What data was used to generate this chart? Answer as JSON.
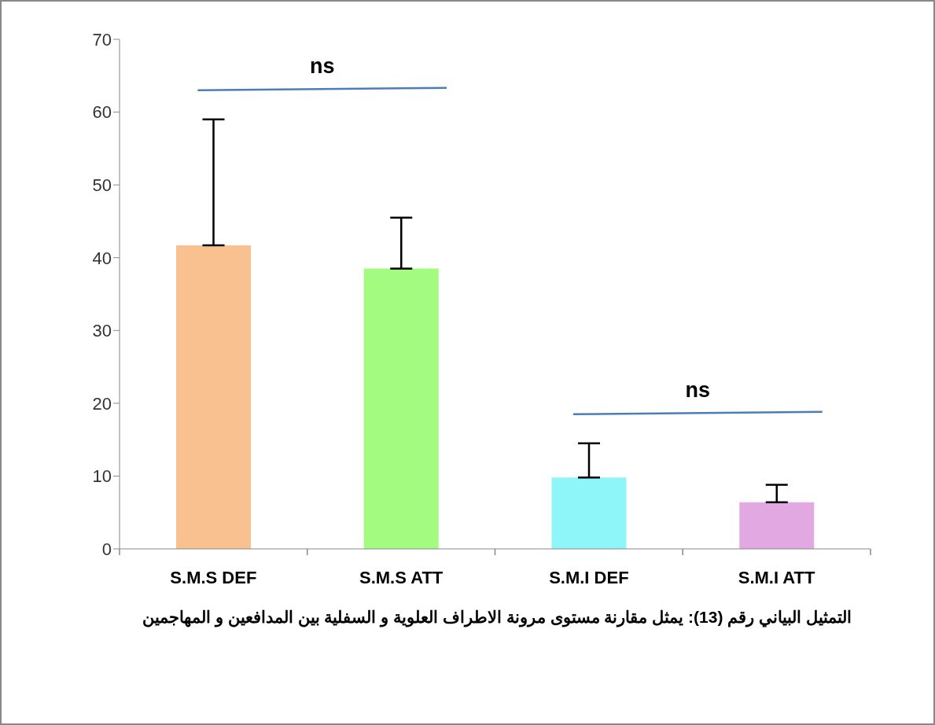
{
  "chart_data": {
    "type": "bar",
    "title": "التمثيل البياني رقم (13): يمثل مقارنة مستوى مرونة الاطراف العلوية و السفلية بين المدافعين و المهاجمين",
    "categories": [
      "S.M.S DEF",
      "S.M.S ATT",
      "S.M.I DEF",
      "S.M.I ATT"
    ],
    "values": [
      41.7,
      38.5,
      9.8,
      6.4
    ],
    "colors": [
      "#f9c18f",
      "#a3fc7f",
      "#8ef5f8",
      "#e2a8e2"
    ],
    "errors": [
      [
        41.7,
        59
      ],
      [
        38.5,
        45.5
      ],
      [
        9.8,
        14.5
      ],
      [
        6.4,
        8.8
      ]
    ],
    "ylim": [
      0,
      70
    ],
    "yticks": [
      0,
      10,
      20,
      30,
      40,
      50,
      60,
      70
    ],
    "annotations": [
      "ns",
      "ns"
    ],
    "grid": false,
    "legend": false
  }
}
